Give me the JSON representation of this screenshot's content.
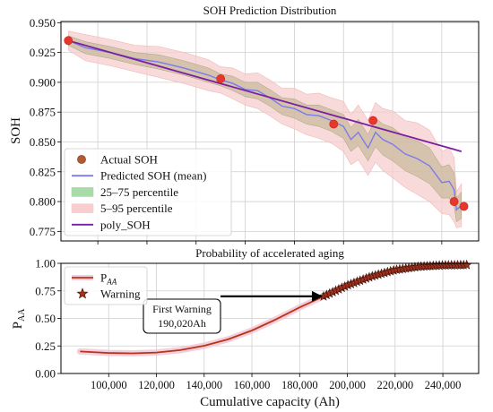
{
  "chart_data": [
    {
      "type": "line",
      "title": "SOH Prediction Distribution",
      "xlabel": "",
      "ylabel": "SOH",
      "xlim": [
        85000,
        255000
      ],
      "ylim": [
        0.767,
        0.951
      ],
      "y_ticks": [
        0.775,
        0.8,
        0.825,
        0.85,
        0.875,
        0.9,
        0.925,
        0.95
      ],
      "y_tick_labels": [
        "0.775",
        "0.800",
        "0.825",
        "0.850",
        "0.875",
        "0.900",
        "0.925",
        "0.950"
      ],
      "grid": true,
      "legend_position": "lower-left",
      "legend": [
        {
          "label": "Actual SOH",
          "kind": "marker",
          "color": "#e8362c"
        },
        {
          "label": "Predicted SOH (mean)",
          "kind": "line",
          "color": "#7b7bea"
        },
        {
          "label": "25–75 percentile",
          "kind": "patch",
          "color": "#a8dba8"
        },
        {
          "label": "5–95 percentile",
          "kind": "patch",
          "color": "#f7cdcd"
        },
        {
          "label": "poly_SOH",
          "kind": "line",
          "color": "#7a1fa0"
        }
      ],
      "series": [
        {
          "name": "Actual SOH",
          "kind": "scatter",
          "x": [
            88000,
            150000,
            196000,
            212000,
            245000,
            249000
          ],
          "y": [
            0.935,
            0.903,
            0.865,
            0.868,
            0.8,
            0.796
          ]
        },
        {
          "name": "Predicted SOH (mean)",
          "kind": "line",
          "x": [
            88000,
            95000,
            105000,
            115000,
            125000,
            135000,
            145000,
            150000,
            155000,
            160000,
            165000,
            170000,
            175000,
            180000,
            185000,
            190000,
            195000,
            200000,
            203000,
            206000,
            210000,
            213000,
            216000,
            220000,
            225000,
            230000,
            235000,
            240000,
            243000,
            245000,
            246000,
            248000
          ],
          "y": [
            0.935,
            0.929,
            0.925,
            0.92,
            0.917,
            0.912,
            0.906,
            0.902,
            0.899,
            0.894,
            0.893,
            0.887,
            0.88,
            0.878,
            0.873,
            0.872,
            0.868,
            0.863,
            0.852,
            0.858,
            0.845,
            0.858,
            0.852,
            0.848,
            0.84,
            0.836,
            0.83,
            0.816,
            0.817,
            0.81,
            0.793,
            0.797
          ]
        },
        {
          "name": "25–75 percentile",
          "kind": "band",
          "x": [
            88000,
            95000,
            105000,
            115000,
            125000,
            135000,
            145000,
            150000,
            155000,
            160000,
            165000,
            170000,
            175000,
            180000,
            185000,
            190000,
            195000,
            200000,
            203000,
            206000,
            210000,
            213000,
            216000,
            220000,
            225000,
            230000,
            235000,
            240000,
            243000,
            245000,
            246000,
            248000
          ],
          "lower": [
            0.931,
            0.924,
            0.92,
            0.915,
            0.911,
            0.906,
            0.9,
            0.897,
            0.893,
            0.888,
            0.886,
            0.88,
            0.873,
            0.87,
            0.865,
            0.863,
            0.859,
            0.853,
            0.842,
            0.847,
            0.834,
            0.846,
            0.839,
            0.834,
            0.826,
            0.821,
            0.815,
            0.803,
            0.803,
            0.796,
            0.783,
            0.786
          ],
          "upper": [
            0.939,
            0.934,
            0.93,
            0.925,
            0.923,
            0.918,
            0.912,
            0.907,
            0.905,
            0.9,
            0.9,
            0.894,
            0.887,
            0.886,
            0.881,
            0.881,
            0.877,
            0.873,
            0.862,
            0.869,
            0.856,
            0.87,
            0.865,
            0.862,
            0.854,
            0.851,
            0.845,
            0.829,
            0.831,
            0.824,
            0.803,
            0.808
          ]
        },
        {
          "name": "5–95 percentile",
          "kind": "band",
          "x": [
            88000,
            95000,
            105000,
            115000,
            125000,
            135000,
            145000,
            150000,
            155000,
            160000,
            165000,
            170000,
            175000,
            180000,
            185000,
            190000,
            195000,
            200000,
            203000,
            206000,
            210000,
            213000,
            216000,
            220000,
            225000,
            230000,
            235000,
            240000,
            243000,
            245000,
            246000,
            248000
          ],
          "lower": [
            0.927,
            0.918,
            0.914,
            0.909,
            0.904,
            0.899,
            0.893,
            0.891,
            0.886,
            0.881,
            0.878,
            0.872,
            0.865,
            0.861,
            0.856,
            0.853,
            0.849,
            0.842,
            0.831,
            0.835,
            0.822,
            0.833,
            0.826,
            0.82,
            0.812,
            0.806,
            0.8,
            0.79,
            0.789,
            0.783,
            0.778,
            0.779
          ],
          "upper": [
            0.943,
            0.94,
            0.936,
            0.931,
            0.93,
            0.925,
            0.919,
            0.913,
            0.912,
            0.907,
            0.908,
            0.902,
            0.895,
            0.895,
            0.89,
            0.891,
            0.887,
            0.884,
            0.873,
            0.881,
            0.868,
            0.883,
            0.878,
            0.876,
            0.868,
            0.866,
            0.86,
            0.842,
            0.845,
            0.837,
            0.808,
            0.815
          ]
        },
        {
          "name": "poly_SOH",
          "kind": "line",
          "x": [
            88000,
            248000
          ],
          "y": [
            0.935,
            0.842
          ]
        }
      ]
    },
    {
      "type": "line",
      "title": "Probability of accelerated aging",
      "xlabel": "Cumulative capacity (Ah)",
      "ylabel": "P",
      "ylabel_sub": "AA",
      "xlim": [
        80000,
        255000
      ],
      "ylim": [
        0.0,
        1.0
      ],
      "x_ticks": [
        100000,
        120000,
        140000,
        160000,
        180000,
        200000,
        220000,
        240000
      ],
      "x_tick_labels": [
        "100,000",
        "120,000",
        "140,000",
        "160,000",
        "180,000",
        "200,000",
        "220,000",
        "240,000"
      ],
      "y_ticks": [
        0.0,
        0.25,
        0.5,
        0.75,
        1.0
      ],
      "y_tick_labels": [
        "0.00",
        "0.25",
        "0.50",
        "0.75",
        "1.00"
      ],
      "grid": true,
      "legend_position": "top-left",
      "legend": [
        {
          "label": "P",
          "label_sub": "AA",
          "kind": "line",
          "color": "#b5341a"
        },
        {
          "label": "Warning",
          "kind": "star",
          "color": "#a5301b"
        }
      ],
      "series": [
        {
          "name": "P_AA",
          "kind": "line",
          "x": [
            88000,
            100000,
            110000,
            120000,
            130000,
            140000,
            150000,
            160000,
            170000,
            180000,
            190000,
            200000,
            210000,
            220000,
            230000,
            240000,
            250000
          ],
          "y": [
            0.2,
            0.186,
            0.183,
            0.19,
            0.212,
            0.252,
            0.31,
            0.39,
            0.49,
            0.6,
            0.7,
            0.8,
            0.88,
            0.94,
            0.97,
            0.982,
            0.985
          ]
        },
        {
          "name": "Warning",
          "kind": "markers",
          "marker": "star",
          "x_start": 190020,
          "x_end": 250000,
          "count": 48
        }
      ],
      "annotation": {
        "lines": [
          "First Warning",
          "190,020Ah"
        ],
        "arrow_to": {
          "x": 190020,
          "y": 0.7
        }
      }
    }
  ]
}
